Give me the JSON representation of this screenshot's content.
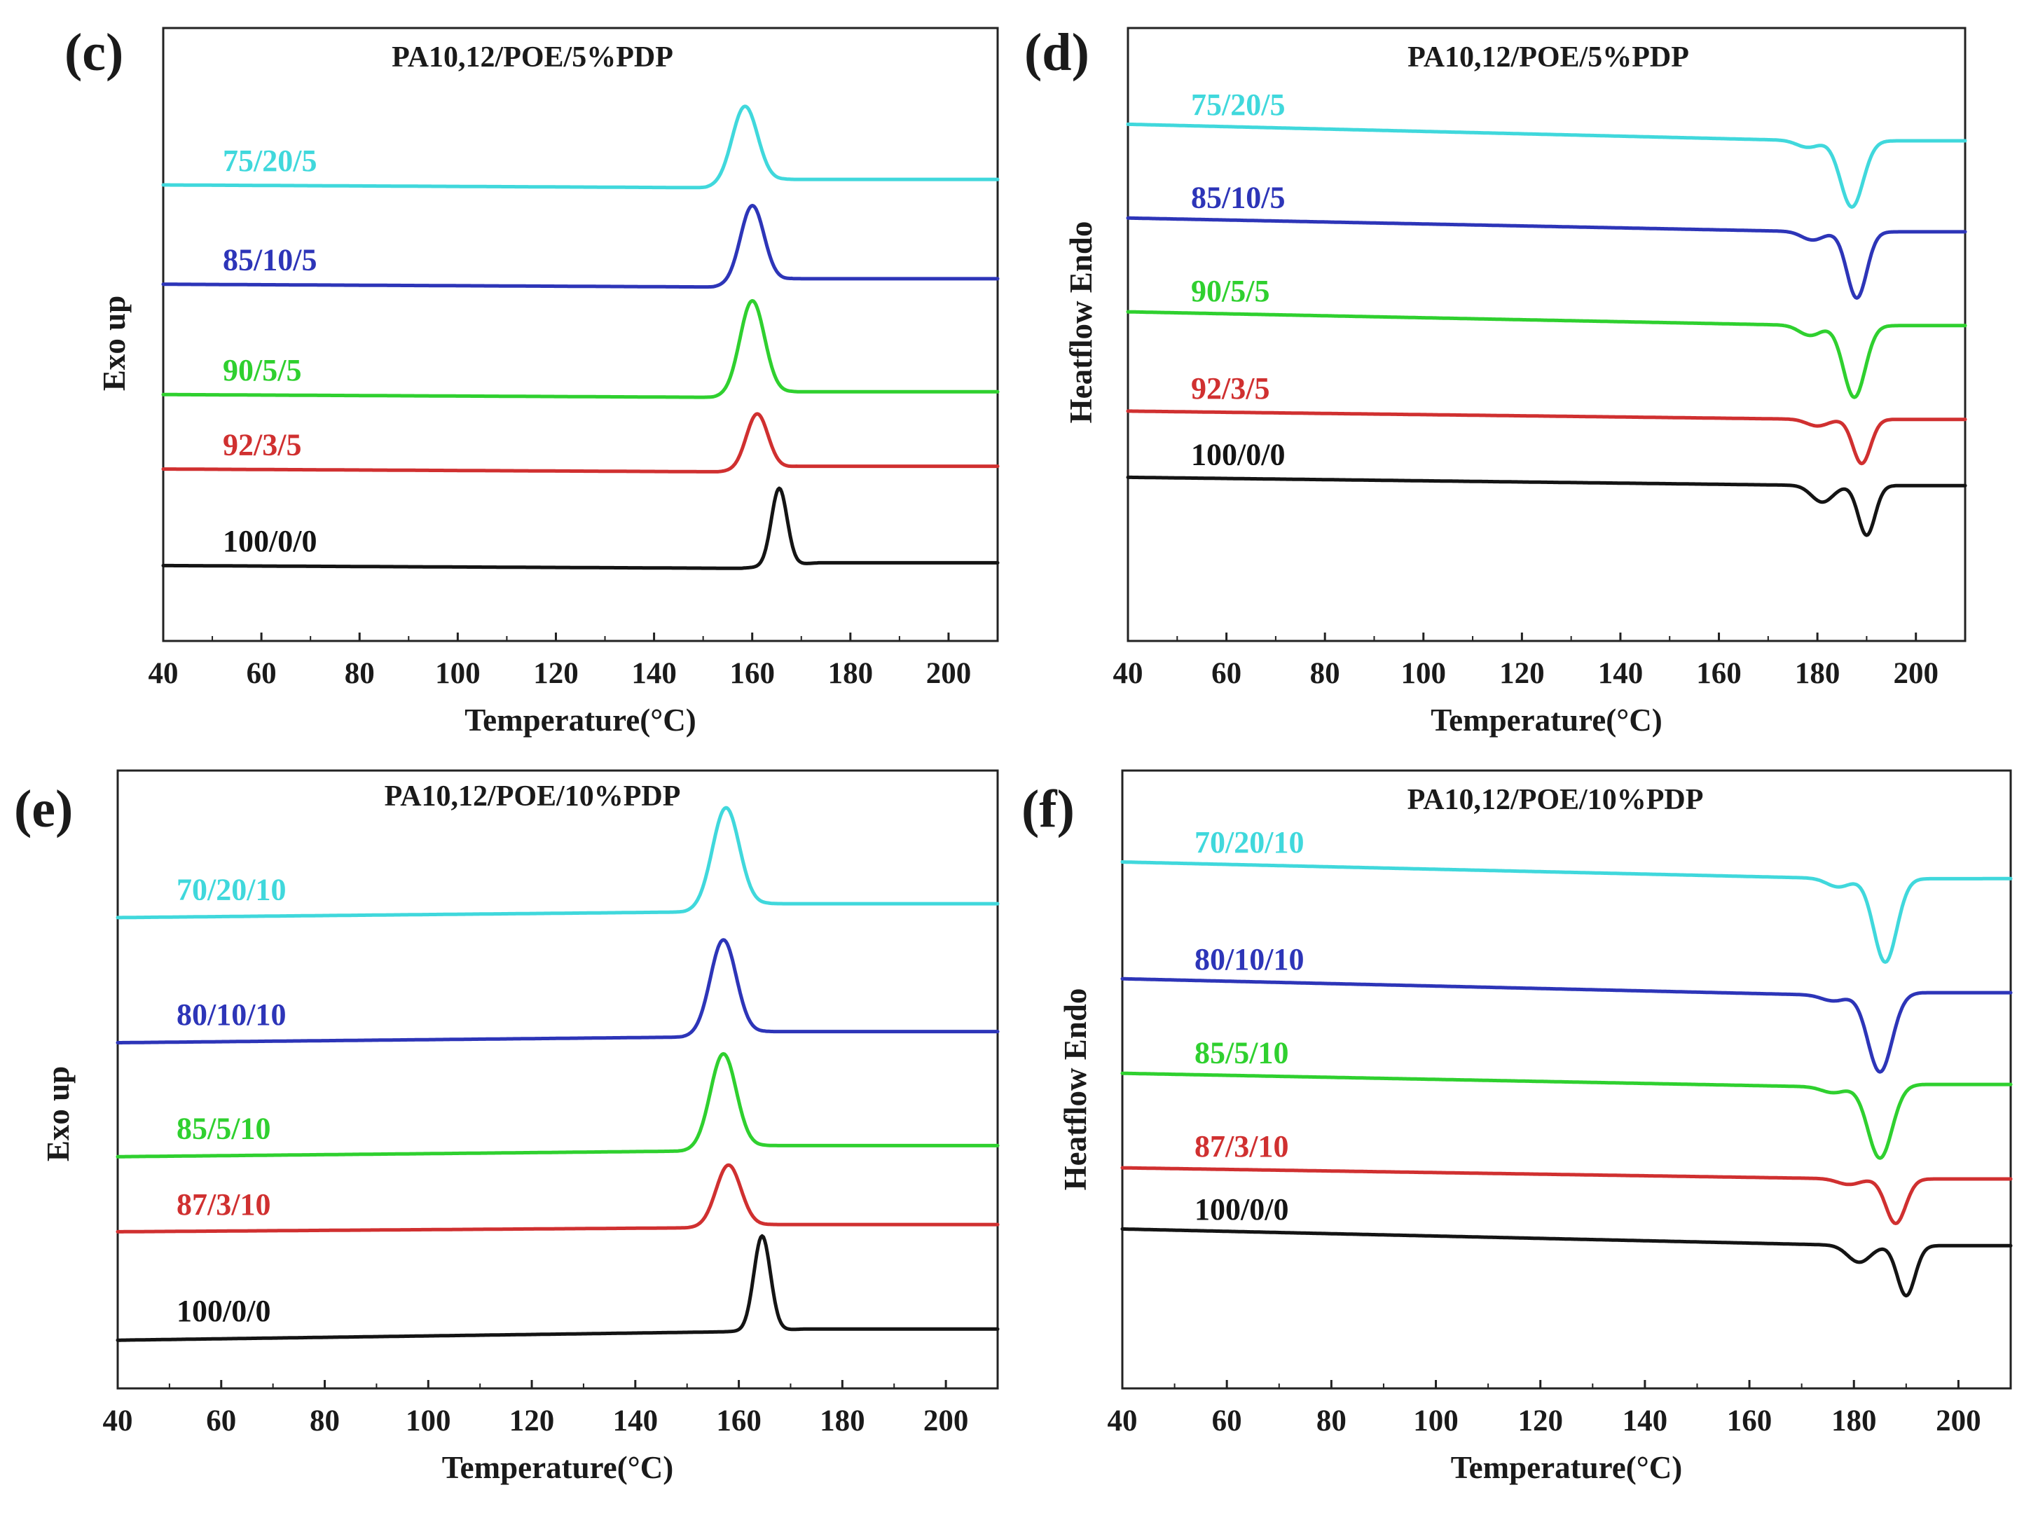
{
  "colors": {
    "cyan": "#40d8dc",
    "blue": "#2d35b8",
    "green": "#2fd02f",
    "red": "#d03030",
    "black": "#141414"
  },
  "chart_data": [
    {
      "panel": "(c)",
      "type": "line",
      "title": "PA10,12/POE/5%PDP",
      "xlabel": "Temperature(°C)",
      "ylabel": "Exo up",
      "xlim": [
        40,
        210
      ],
      "xticks": [
        40,
        60,
        80,
        100,
        120,
        140,
        160,
        180,
        200
      ],
      "yticks": [],
      "mode": "exo",
      "series": [
        {
          "name": "75/20/5",
          "color": "#40d8dc",
          "baseline_start": 0.76,
          "baseline_end": 0.755,
          "baseline_after": 0.77,
          "peak_x": 158.5,
          "peak_height": 0.14,
          "peak_width": 2.6,
          "shoulder": 0
        },
        {
          "name": "85/10/5",
          "color": "#2d35b8",
          "baseline_start": 0.58,
          "baseline_end": 0.575,
          "baseline_after": 0.59,
          "peak_x": 160,
          "peak_height": 0.14,
          "peak_width": 2.4,
          "shoulder": 0
        },
        {
          "name": "90/5/5",
          "color": "#2fd02f",
          "baseline_start": 0.38,
          "baseline_end": 0.375,
          "baseline_after": 0.385,
          "peak_x": 160,
          "peak_height": 0.17,
          "peak_width": 2.5,
          "shoulder": 0
        },
        {
          "name": "92/3/5",
          "color": "#d03030",
          "baseline_start": 0.245,
          "baseline_end": 0.24,
          "baseline_after": 0.25,
          "peak_x": 161,
          "peak_height": 0.1,
          "peak_width": 2.2,
          "shoulder": 0
        },
        {
          "name": "100/0/0",
          "color": "#141414",
          "baseline_start": 0.07,
          "baseline_end": 0.065,
          "baseline_after": 0.075,
          "peak_x": 165.5,
          "peak_height": 0.14,
          "peak_width": 1.6,
          "shoulder": 0
        }
      ]
    },
    {
      "panel": "(d)",
      "type": "line",
      "title": "PA10,12/POE/5%PDP",
      "xlabel": "Temperature(°C)",
      "ylabel": "Heatflow Endo",
      "xlim": [
        40,
        210
      ],
      "xticks": [
        40,
        60,
        80,
        100,
        120,
        140,
        160,
        180,
        200
      ],
      "yticks": [],
      "mode": "endo",
      "series": [
        {
          "name": "75/20/5",
          "color": "#40d8dc",
          "baseline_start": 0.87,
          "baseline_end": 0.84,
          "baseline_after": 0.84,
          "peak_x": 187,
          "peak_height": 0.12,
          "peak_width": 2.3,
          "shoulder": 0.012
        },
        {
          "name": "85/10/5",
          "color": "#2d35b8",
          "baseline_start": 0.7,
          "baseline_end": 0.675,
          "baseline_after": 0.675,
          "peak_x": 188,
          "peak_height": 0.12,
          "peak_width": 2.0,
          "shoulder": 0.015
        },
        {
          "name": "90/5/5",
          "color": "#2fd02f",
          "baseline_start": 0.53,
          "baseline_end": 0.505,
          "baseline_after": 0.505,
          "peak_x": 187.5,
          "peak_height": 0.13,
          "peak_width": 2.2,
          "shoulder": 0.018
        },
        {
          "name": "92/3/5",
          "color": "#d03030",
          "baseline_start": 0.35,
          "baseline_end": 0.335,
          "baseline_after": 0.335,
          "peak_x": 189,
          "peak_height": 0.08,
          "peak_width": 1.8,
          "shoulder": 0.012
        },
        {
          "name": "100/0/0",
          "color": "#141414",
          "baseline_start": 0.23,
          "baseline_end": 0.215,
          "baseline_after": 0.215,
          "peak_x": 190,
          "peak_height": 0.09,
          "peak_width": 1.7,
          "shoulder": 0.03
        }
      ]
    },
    {
      "panel": "(e)",
      "type": "line",
      "title": "PA10,12/POE/10%PDP",
      "xlabel": "Temperature(°C)",
      "ylabel": "Exo up",
      "xlim": [
        40,
        210
      ],
      "xticks": [
        40,
        60,
        80,
        100,
        120,
        140,
        160,
        180,
        200
      ],
      "yticks": [],
      "mode": "exo",
      "series": [
        {
          "name": "70/20/10",
          "color": "#40d8dc",
          "baseline_start": 0.78,
          "baseline_end": 0.79,
          "baseline_after": 0.805,
          "peak_x": 157.5,
          "peak_height": 0.18,
          "peak_width": 2.6,
          "shoulder": 0
        },
        {
          "name": "80/10/10",
          "color": "#2d35b8",
          "baseline_start": 0.555,
          "baseline_end": 0.565,
          "baseline_after": 0.575,
          "peak_x": 157,
          "peak_height": 0.17,
          "peak_width": 2.5,
          "shoulder": 0
        },
        {
          "name": "85/5/10",
          "color": "#2fd02f",
          "baseline_start": 0.35,
          "baseline_end": 0.36,
          "baseline_after": 0.37,
          "peak_x": 157,
          "peak_height": 0.17,
          "peak_width": 2.5,
          "shoulder": 0
        },
        {
          "name": "87/3/10",
          "color": "#d03030",
          "baseline_start": 0.215,
          "baseline_end": 0.222,
          "baseline_after": 0.228,
          "peak_x": 158,
          "peak_height": 0.11,
          "peak_width": 2.4,
          "shoulder": 0
        },
        {
          "name": "100/0/0",
          "color": "#141414",
          "baseline_start": 0.02,
          "baseline_end": 0.035,
          "baseline_after": 0.04,
          "peak_x": 164.5,
          "peak_height": 0.17,
          "peak_width": 1.6,
          "shoulder": 0
        }
      ]
    },
    {
      "panel": "(f)",
      "type": "line",
      "title": "PA10,12/POE/10%PDP",
      "xlabel": "Temperature(°C)",
      "ylabel": "Heatflow Endo",
      "xlim": [
        40,
        210
      ],
      "xticks": [
        40,
        60,
        80,
        100,
        120,
        140,
        160,
        180,
        200
      ],
      "yticks": [],
      "mode": "endo",
      "series": [
        {
          "name": "70/20/10",
          "color": "#40d8dc",
          "baseline_start": 0.88,
          "baseline_end": 0.85,
          "baseline_after": 0.85,
          "peak_x": 186,
          "peak_height": 0.15,
          "peak_width": 2.2,
          "shoulder": 0.015
        },
        {
          "name": "80/10/10",
          "color": "#2d35b8",
          "baseline_start": 0.67,
          "baseline_end": 0.64,
          "baseline_after": 0.645,
          "peak_x": 185,
          "peak_height": 0.14,
          "peak_width": 2.3,
          "shoulder": 0.01
        },
        {
          "name": "85/5/10",
          "color": "#2fd02f",
          "baseline_start": 0.5,
          "baseline_end": 0.475,
          "baseline_after": 0.48,
          "peak_x": 185,
          "peak_height": 0.13,
          "peak_width": 2.3,
          "shoulder": 0.01
        },
        {
          "name": "87/3/10",
          "color": "#d03030",
          "baseline_start": 0.33,
          "baseline_end": 0.31,
          "baseline_after": 0.31,
          "peak_x": 188,
          "peak_height": 0.08,
          "peak_width": 1.9,
          "shoulder": 0.01
        },
        {
          "name": "100/0/0",
          "color": "#141414",
          "baseline_start": 0.22,
          "baseline_end": 0.19,
          "baseline_after": 0.19,
          "peak_x": 190,
          "peak_height": 0.09,
          "peak_width": 1.7,
          "shoulder": 0.03
        }
      ]
    }
  ]
}
